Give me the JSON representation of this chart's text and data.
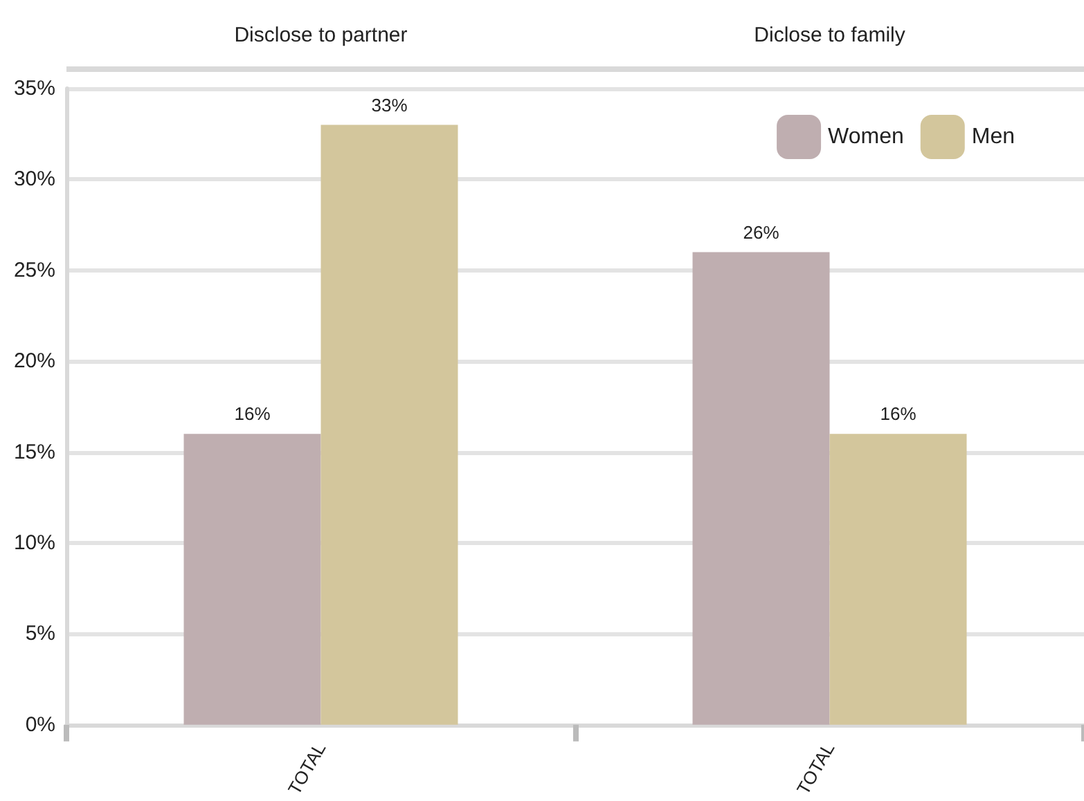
{
  "chart_data": {
    "type": "bar",
    "categories": [
      "TOTAL",
      "TOTAL"
    ],
    "annotations": [
      "Disclose to partner",
      "Diclose to family"
    ],
    "series": [
      {
        "name": "Women",
        "color": "#bfaeb0",
        "values": [
          16,
          26
        ],
        "value_labels": [
          "16%",
          "26%"
        ]
      },
      {
        "name": "Men",
        "color": "#d3c69c",
        "values": [
          33,
          16
        ],
        "value_labels": [
          "33%",
          "16%"
        ]
      }
    ],
    "ylim": [
      0,
      35
    ],
    "yticks": [
      {
        "value": 0,
        "label": "0%"
      },
      {
        "value": 5,
        "label": "5%"
      },
      {
        "value": 10,
        "label": "10%"
      },
      {
        "value": 15,
        "label": "15%"
      },
      {
        "value": 20,
        "label": "20%"
      },
      {
        "value": 25,
        "label": "25%"
      },
      {
        "value": 30,
        "label": "30%"
      },
      {
        "value": 35,
        "label": "35%"
      }
    ],
    "grid": "y",
    "legend": "top right"
  }
}
